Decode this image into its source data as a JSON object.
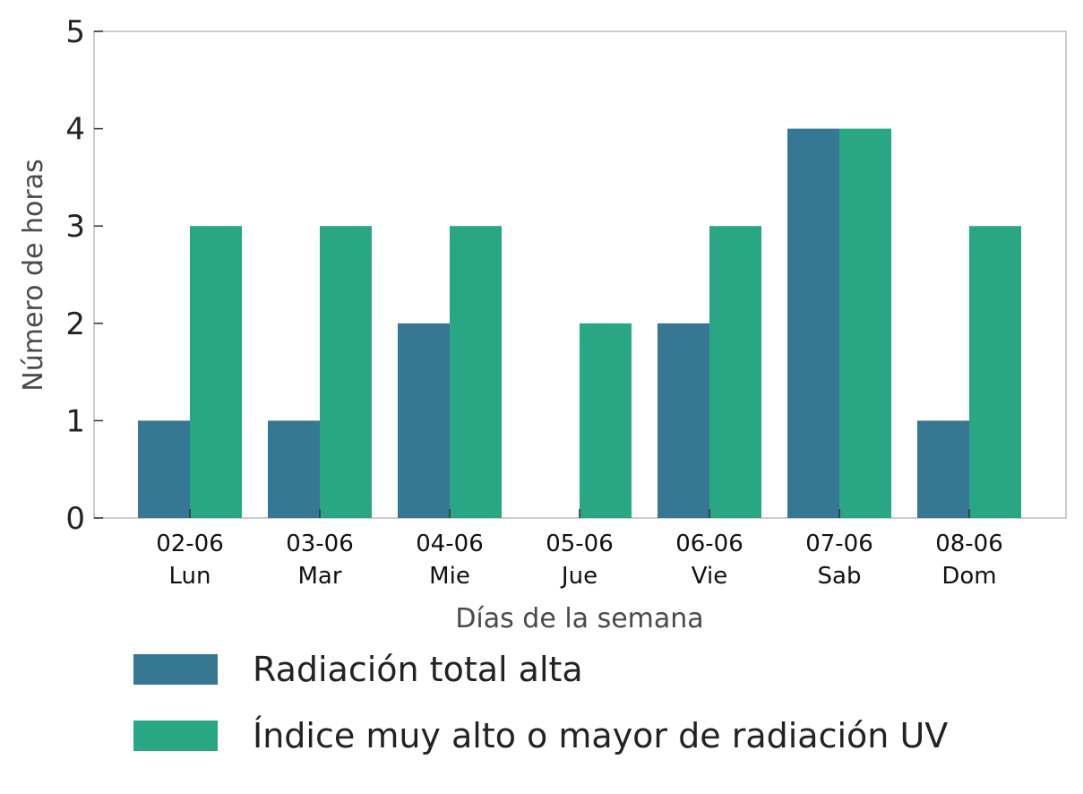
{
  "chart_data": {
    "type": "bar",
    "categories": [
      [
        "02-06",
        "Lun"
      ],
      [
        "03-06",
        "Mar"
      ],
      [
        "04-06",
        "Mie"
      ],
      [
        "05-06",
        "Jue"
      ],
      [
        "06-06",
        "Vie"
      ],
      [
        "07-06",
        "Sab"
      ],
      [
        "08-06",
        "Dom"
      ]
    ],
    "series": [
      {
        "name": "Radiación total alta",
        "values": [
          1,
          1,
          2,
          0,
          2,
          4,
          1
        ],
        "color": "#367893"
      },
      {
        "name": "Índice muy alto o mayor de radiación UV",
        "values": [
          3,
          3,
          3,
          2,
          3,
          4,
          3
        ],
        "color": "#29a684"
      }
    ],
    "xlabel": "Días de la semana",
    "ylabel": "Número de horas",
    "ylim": [
      0,
      5
    ],
    "yticks": [
      "0",
      "1",
      "2",
      "3",
      "4",
      "5"
    ],
    "grid": false,
    "legend_position": "bottom"
  }
}
